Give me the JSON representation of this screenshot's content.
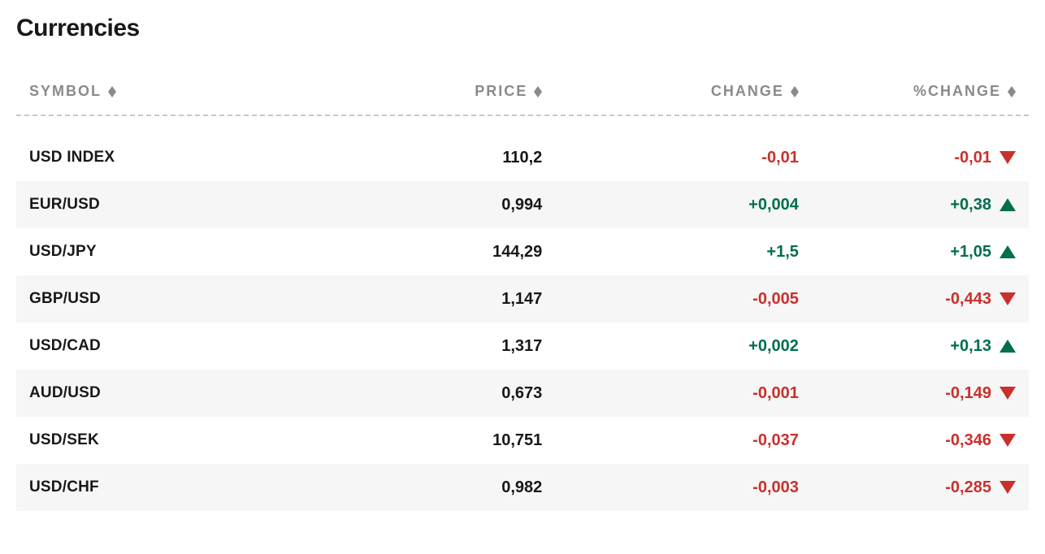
{
  "title": "Currencies",
  "colors": {
    "positive": "#006e4f",
    "negative": "#c9302c",
    "text": "#181818",
    "header": "#8a8a8a",
    "row_alt_bg": "#f6f6f6",
    "dash_border": "#c8c8c8",
    "sort_arrow": "#8a8a8a"
  },
  "columns": [
    {
      "key": "symbol",
      "label": "SYMBOL"
    },
    {
      "key": "price",
      "label": "PRICE"
    },
    {
      "key": "change",
      "label": "CHANGE"
    },
    {
      "key": "pct",
      "label": "%CHANGE"
    }
  ],
  "rows": [
    {
      "symbol": "USD INDEX",
      "price": "110,2",
      "change": "-0,01",
      "pct": "-0,01",
      "direction": "down"
    },
    {
      "symbol": "EUR/USD",
      "price": "0,994",
      "change": "+0,004",
      "pct": "+0,38",
      "direction": "up"
    },
    {
      "symbol": "USD/JPY",
      "price": "144,29",
      "change": "+1,5",
      "pct": "+1,05",
      "direction": "up"
    },
    {
      "symbol": "GBP/USD",
      "price": "1,147",
      "change": "-0,005",
      "pct": "-0,443",
      "direction": "down"
    },
    {
      "symbol": "USD/CAD",
      "price": "1,317",
      "change": "+0,002",
      "pct": "+0,13",
      "direction": "up"
    },
    {
      "symbol": "AUD/USD",
      "price": "0,673",
      "change": "-0,001",
      "pct": "-0,149",
      "direction": "down"
    },
    {
      "symbol": "USD/SEK",
      "price": "10,751",
      "change": "-0,037",
      "pct": "-0,346",
      "direction": "down"
    },
    {
      "symbol": "USD/CHF",
      "price": "0,982",
      "change": "-0,003",
      "pct": "-0,285",
      "direction": "down"
    }
  ]
}
